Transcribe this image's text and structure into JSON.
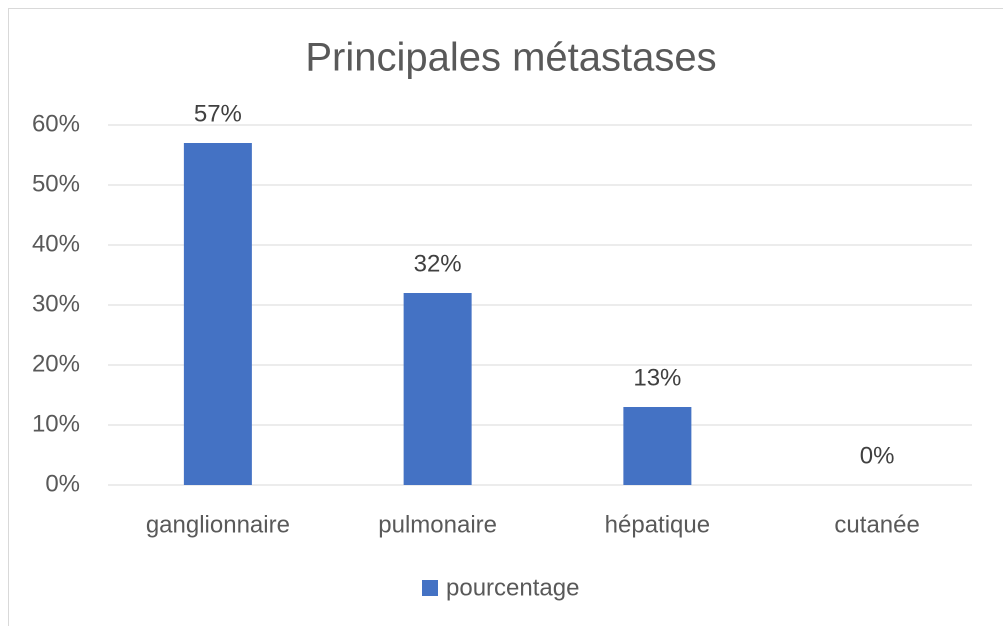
{
  "chart_data": {
    "type": "bar",
    "title": "Principales métastases",
    "categories": [
      "ganglionnaire",
      "pulmonaire",
      "hépatique",
      "cutanée"
    ],
    "series": [
      {
        "name": "pourcentage",
        "color": "#4472c4",
        "values": [
          57,
          32,
          13,
          0
        ],
        "value_labels": [
          "57%",
          "32%",
          "13%",
          "0%"
        ]
      }
    ],
    "ylim": [
      0,
      60
    ],
    "yticks": [
      {
        "value": 0,
        "label": "0%"
      },
      {
        "value": 10,
        "label": "10%"
      },
      {
        "value": 20,
        "label": "20%"
      },
      {
        "value": 30,
        "label": "30%"
      },
      {
        "value": 40,
        "label": "40%"
      },
      {
        "value": 50,
        "label": "50%"
      },
      {
        "value": 60,
        "label": "60%"
      }
    ],
    "grid": true,
    "legend": "bottom"
  }
}
